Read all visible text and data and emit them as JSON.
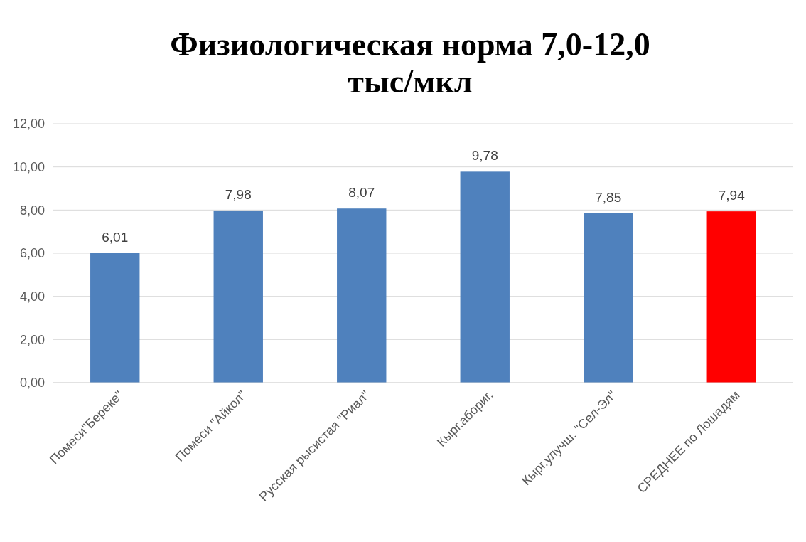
{
  "chart_data": {
    "type": "bar",
    "title": "Физиологическая норма 7,0-12,0\nтыс/мкл",
    "categories": [
      "Помеси\"Береке\"",
      "Помеси \"Айкол\"",
      "Русская рысистая \"Риал\"",
      "Кырг.абориг.",
      "Кырг.улучш. \"Сел-Эл\"",
      "СРЕДНЕЕ по Лошадям"
    ],
    "values": [
      6.01,
      7.98,
      8.07,
      9.78,
      7.85,
      7.94
    ],
    "colors": [
      "#4f81bd",
      "#4f81bd",
      "#4f81bd",
      "#4f81bd",
      "#4f81bd",
      "#ff0000"
    ],
    "value_labels": [
      "6,01",
      "7,98",
      "8,07",
      "9,78",
      "7,85",
      "7,94"
    ],
    "ylim": [
      0,
      12
    ],
    "yticks": [
      {
        "value": 0,
        "label": "0,00"
      },
      {
        "value": 2,
        "label": "2,00"
      },
      {
        "value": 4,
        "label": "4,00"
      },
      {
        "value": 6,
        "label": "6,00"
      },
      {
        "value": 8,
        "label": "8,00"
      },
      {
        "value": 10,
        "label": "10,00"
      },
      {
        "value": 12,
        "label": "12,00"
      }
    ],
    "grid": "y"
  }
}
